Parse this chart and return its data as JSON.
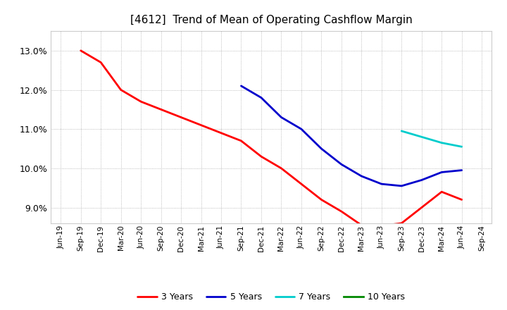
{
  "title": "[4612]  Trend of Mean of Operating Cashflow Margin",
  "title_fontsize": 11,
  "background_color": "#ffffff",
  "grid_color": "#aaaaaa",
  "ylim": [
    0.086,
    0.135
  ],
  "yticks": [
    0.09,
    0.1,
    0.11,
    0.12,
    0.13
  ],
  "series": {
    "3 Years": {
      "color": "#ff0000",
      "x": [
        "Sep-19",
        "Dec-19",
        "Mar-20",
        "Jun-20",
        "Sep-20",
        "Dec-20",
        "Mar-21",
        "Jun-21",
        "Sep-21",
        "Dec-21",
        "Mar-22",
        "Jun-22",
        "Sep-22",
        "Dec-22",
        "Mar-23",
        "Jun-23",
        "Sep-23",
        "Dec-23",
        "Mar-24",
        "Jun-24"
      ],
      "y": [
        0.13,
        0.127,
        0.12,
        0.117,
        0.115,
        0.113,
        0.111,
        0.109,
        0.107,
        0.103,
        0.1,
        0.096,
        0.092,
        0.089,
        0.0855,
        0.0853,
        0.086,
        0.09,
        0.094,
        0.092
      ]
    },
    "5 Years": {
      "color": "#0000cc",
      "x": [
        "Sep-21",
        "Dec-21",
        "Mar-22",
        "Jun-22",
        "Sep-22",
        "Dec-22",
        "Mar-23",
        "Jun-23",
        "Sep-23",
        "Dec-23",
        "Mar-24",
        "Jun-24"
      ],
      "y": [
        0.121,
        0.118,
        0.113,
        0.11,
        0.105,
        0.101,
        0.098,
        0.096,
        0.0955,
        0.097,
        0.099,
        0.0995
      ]
    },
    "7 Years": {
      "color": "#00cccc",
      "x": [
        "Sep-23",
        "Dec-23",
        "Mar-24",
        "Jun-24"
      ],
      "y": [
        0.1095,
        0.108,
        0.1065,
        0.1055
      ]
    },
    "10 Years": {
      "color": "#008800",
      "x": [],
      "y": []
    }
  },
  "xticks": [
    "Jun-19",
    "Sep-19",
    "Dec-19",
    "Mar-20",
    "Jun-20",
    "Sep-20",
    "Dec-20",
    "Mar-21",
    "Jun-21",
    "Sep-21",
    "Dec-21",
    "Mar-22",
    "Jun-22",
    "Sep-22",
    "Dec-22",
    "Mar-23",
    "Jun-23",
    "Sep-23",
    "Dec-23",
    "Mar-24",
    "Jun-24",
    "Sep-24"
  ],
  "legend_ncol": 4,
  "legend_fontsize": 9,
  "line_width": 2.0
}
